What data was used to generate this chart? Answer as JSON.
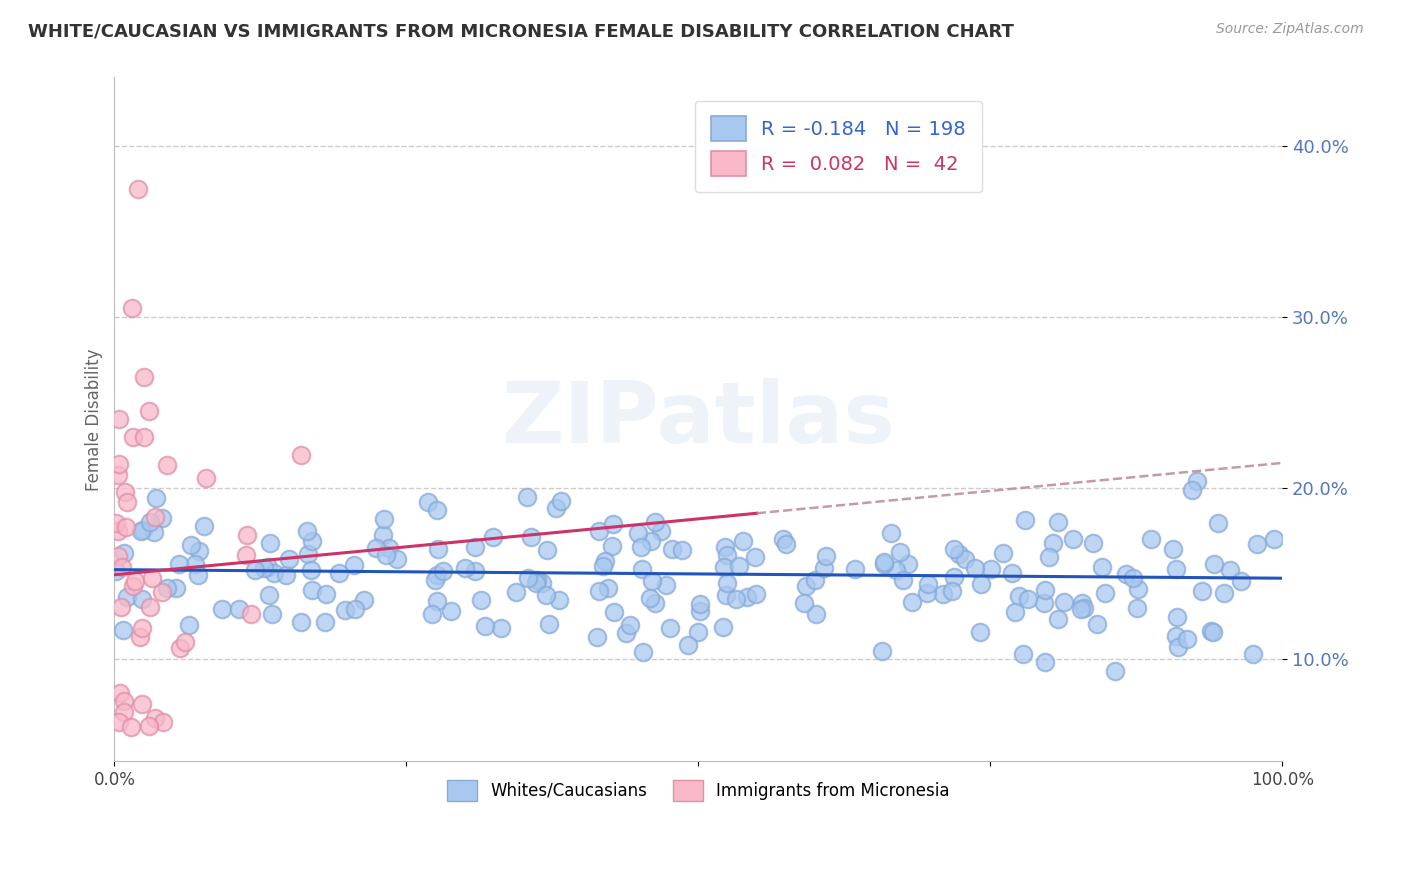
{
  "title": "WHITE/CAUCASIAN VS IMMIGRANTS FROM MICRONESIA FEMALE DISABILITY CORRELATION CHART",
  "source": "Source: ZipAtlas.com",
  "ylabel": "Female Disability",
  "xlim": [
    0,
    1
  ],
  "ylim": [
    0.04,
    0.44
  ],
  "yticks": [
    0.1,
    0.2,
    0.3,
    0.4
  ],
  "ytick_labels": [
    "10.0%",
    "20.0%",
    "30.0%",
    "40.0%"
  ],
  "xticks": [
    0.0,
    0.25,
    0.5,
    0.75,
    1.0
  ],
  "xtick_labels": [
    "0.0%",
    "",
    "",
    "",
    "100.0%"
  ],
  "blue_R": -0.184,
  "blue_N": 198,
  "pink_R": 0.082,
  "pink_N": 42,
  "blue_color": "#a8c8f0",
  "blue_edge_color": "#88aad8",
  "pink_color": "#f8b8c8",
  "pink_edge_color": "#e090a8",
  "blue_line_color": "#2255bb",
  "pink_line_color": "#cc3366",
  "dashed_line_color": "#bb8899",
  "legend_blue_label": "Whites/Caucasians",
  "legend_pink_label": "Immigrants from Micronesia",
  "watermark": "ZIPatlas",
  "background_color": "#ffffff",
  "title_fontsize": 13,
  "axis_label_color": "#5577bb",
  "seed": 7
}
